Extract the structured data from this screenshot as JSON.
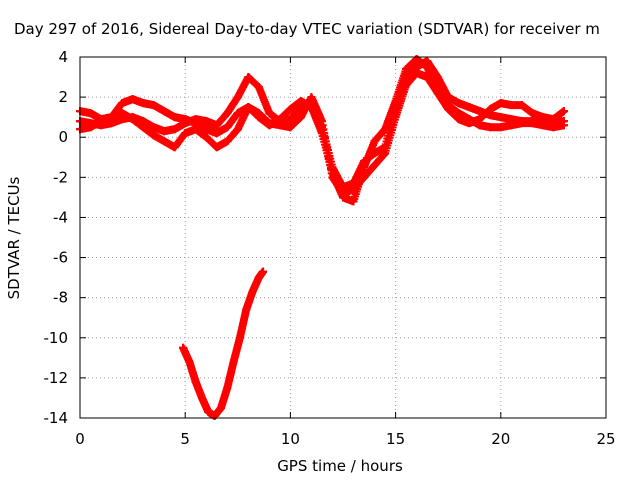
{
  "chart_data": {
    "type": "scatter",
    "title": "Day 297 of 2016, Sidereal Day-to-day VTEC variation (SDTVAR) for receiver m",
    "xlabel": "GPS time / hours",
    "ylabel": "SDTVAR / TECUs",
    "xlim": [
      0,
      25
    ],
    "ylim": [
      -14,
      4
    ],
    "xticks": [
      0,
      5,
      10,
      15,
      20,
      25
    ],
    "yticks": [
      4,
      2,
      0,
      -2,
      -4,
      -6,
      -8,
      -10,
      -12,
      -14
    ],
    "grid": true,
    "color": "#ff0000",
    "marker": "plus",
    "series": [
      {
        "x": [
          0.0,
          0.5,
          1.0,
          1.5,
          2.0,
          2.5,
          3.0,
          3.5,
          4.0,
          4.5,
          5.0,
          5.5,
          6.0,
          6.5,
          7.0,
          7.5,
          8.0,
          8.5,
          9.0,
          9.5,
          10.0,
          10.5,
          11.0,
          11.5,
          12.0,
          12.5,
          13.0,
          13.5,
          14.0,
          14.5,
          15.0,
          15.5,
          16.0,
          16.5,
          17.0,
          17.5,
          18.0,
          18.5,
          19.0,
          19.5,
          20.0,
          20.5,
          21.0,
          21.5,
          22.0,
          22.5,
          23.0
        ],
        "y": [
          0.8,
          0.7,
          0.6,
          0.7,
          0.9,
          1.0,
          0.8,
          0.5,
          0.3,
          0.4,
          0.7,
          0.9,
          0.8,
          0.6,
          1.2,
          2.0,
          3.0,
          2.5,
          1.2,
          0.8,
          0.9,
          1.5,
          1.7,
          0.5,
          -1.5,
          -2.5,
          -2.3,
          -1.2,
          -0.8,
          -0.5,
          1.5,
          3.0,
          3.5,
          3.8,
          3.0,
          2.0,
          1.7,
          1.5,
          1.3,
          1.1,
          1.0,
          0.9,
          0.8,
          0.8,
          0.7,
          0.7,
          0.8
        ]
      },
      {
        "x": [
          0.0,
          0.5,
          1.0,
          1.5,
          2.0,
          2.5,
          3.0,
          3.5,
          4.0,
          4.5,
          5.0,
          5.5,
          6.0,
          6.5,
          7.0,
          7.5,
          8.0,
          8.5,
          9.0,
          9.5,
          10.0,
          10.5,
          11.0,
          11.5,
          12.0,
          12.5,
          13.0,
          13.5,
          14.0,
          14.5,
          15.0,
          15.5,
          16.0,
          16.5,
          17.0,
          17.5,
          18.0,
          18.5,
          19.0,
          19.5,
          20.0,
          20.5,
          21.0,
          21.5,
          22.0,
          22.5,
          23.0
        ],
        "y": [
          1.3,
          1.2,
          0.9,
          1.0,
          1.7,
          1.9,
          1.7,
          1.6,
          1.3,
          1.0,
          0.9,
          0.7,
          0.4,
          0.2,
          0.5,
          1.2,
          1.5,
          1.0,
          0.6,
          0.9,
          1.4,
          1.8,
          1.5,
          0.2,
          -1.8,
          -3.0,
          -3.2,
          -1.5,
          -0.2,
          0.4,
          1.8,
          3.4,
          3.9,
          3.5,
          2.3,
          1.6,
          1.2,
          0.9,
          0.6,
          0.5,
          0.5,
          0.6,
          0.7,
          0.7,
          0.6,
          0.5,
          0.6
        ]
      },
      {
        "x": [
          0.0,
          0.5,
          1.0,
          1.5,
          2.0,
          2.5,
          3.0,
          3.5,
          4.0,
          4.5,
          5.0,
          5.5,
          6.0,
          6.5,
          7.0,
          7.5,
          8.0,
          8.5,
          9.0,
          9.5,
          10.0,
          10.5,
          11.0,
          11.5,
          12.0,
          12.5,
          13.0,
          13.5,
          14.0,
          14.5,
          15.0,
          15.5,
          16.0,
          16.5,
          17.0,
          17.5,
          18.0,
          18.5,
          19.0,
          19.5,
          20.0,
          20.5,
          21.0,
          21.5,
          22.0,
          22.5,
          23.0
        ],
        "y": [
          0.4,
          0.5,
          0.8,
          1.0,
          1.2,
          0.9,
          0.5,
          0.1,
          -0.2,
          -0.5,
          0.2,
          0.4,
          0.0,
          -0.5,
          -0.2,
          0.4,
          1.5,
          1.2,
          0.7,
          0.6,
          0.5,
          1.0,
          2.0,
          0.8,
          -2.0,
          -2.8,
          -2.6,
          -2.0,
          -1.4,
          -0.8,
          1.0,
          2.6,
          3.2,
          3.0,
          2.2,
          1.4,
          0.9,
          0.7,
          0.9,
          1.4,
          1.7,
          1.6,
          1.6,
          1.2,
          1.0,
          0.9,
          1.3
        ]
      },
      {
        "x": [
          4.9,
          5.2,
          5.5,
          5.8,
          6.1,
          6.4,
          6.7,
          7.0,
          7.3,
          7.6,
          7.9,
          8.2,
          8.5,
          8.7
        ],
        "y": [
          -10.5,
          -11.2,
          -12.2,
          -13.0,
          -13.7,
          -13.9,
          -13.5,
          -12.5,
          -11.2,
          -10.0,
          -8.6,
          -7.7,
          -7.0,
          -6.7
        ]
      }
    ]
  }
}
